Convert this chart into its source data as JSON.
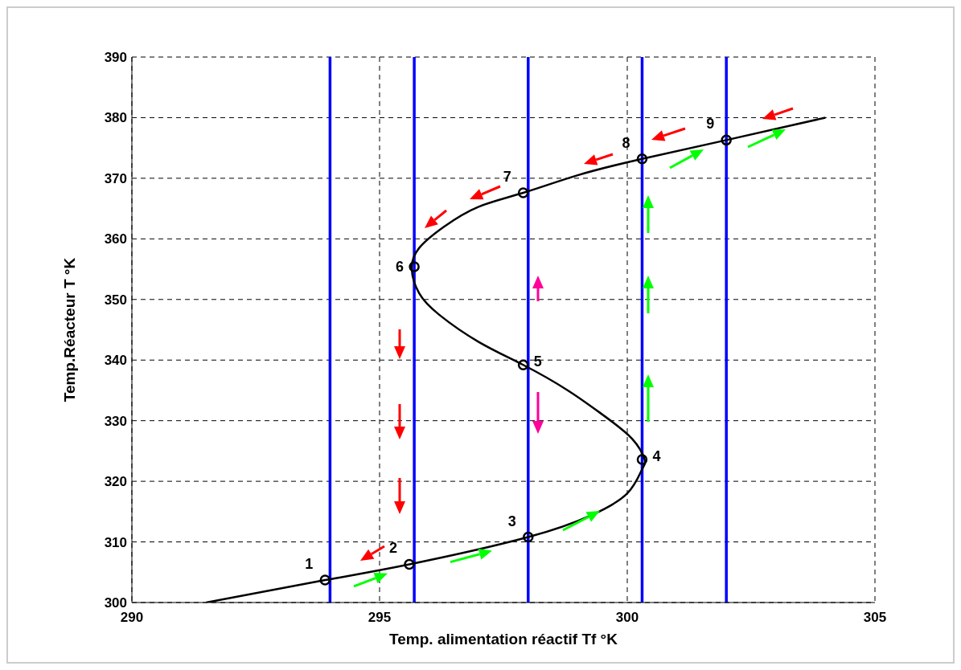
{
  "chart_data": {
    "type": "line",
    "xlabel": "Temp. alimentation réactif Tf °K",
    "ylabel": "Temp.Réacteur T °K",
    "xlim": [
      290,
      305
    ],
    "ylim": [
      300,
      390
    ],
    "xticks": [
      290,
      295,
      300,
      305
    ],
    "yticks": [
      300,
      310,
      320,
      330,
      340,
      350,
      360,
      370,
      380,
      390
    ],
    "grid": true,
    "series": [
      {
        "color": "#000000",
        "x": [
          291.5,
          293.9,
          295.6,
          298,
          299.3,
          300,
          300.3,
          300.35,
          300.1,
          299.5,
          298.8,
          297.9,
          297,
          296.2,
          295.8,
          295.65,
          295.8,
          296.3,
          297,
          297.9,
          299,
          300.3,
          302,
          304
        ],
        "values": [
          300,
          303.7,
          306.3,
          310.8,
          314.5,
          318,
          322,
          323.6,
          327,
          331,
          335,
          339.2,
          343,
          347.5,
          351,
          355,
          358.5,
          362,
          365.3,
          367.6,
          370.5,
          373.2,
          376.3,
          380
        ]
      },
      {
        "type": "scatter",
        "color": "#000000",
        "marker": "circle",
        "x": [
          293.9,
          295.6,
          298,
          300.3,
          297.9,
          295.7,
          297.9,
          300.3,
          302
        ],
        "values": [
          303.7,
          306.3,
          310.8,
          323.6,
          339.2,
          355.4,
          367.6,
          373.2,
          376.3
        ]
      }
    ],
    "annotations": [
      {
        "text": "1",
        "x": 293.9,
        "y": 303.7
      },
      {
        "text": "2",
        "x": 295.6,
        "y": 306.3
      },
      {
        "text": "3",
        "x": 298,
        "y": 310.8
      },
      {
        "text": "4",
        "x": 300.3,
        "y": 323.6
      },
      {
        "text": "5",
        "x": 297.9,
        "y": 339.2
      },
      {
        "text": "6",
        "x": 295.7,
        "y": 355.4
      },
      {
        "text": "7",
        "x": 297.9,
        "y": 367.6
      },
      {
        "text": "8",
        "x": 300.3,
        "y": 373.2
      },
      {
        "text": "9",
        "x": 302,
        "y": 376.3
      }
    ],
    "ref_lines": [
      {
        "axis": "x",
        "value": 294,
        "color": "#0000ff"
      },
      {
        "axis": "x",
        "value": 295.7,
        "color": "#0000ff"
      },
      {
        "axis": "x",
        "value": 298,
        "color": "#0000ff"
      },
      {
        "axis": "x",
        "value": 300.3,
        "color": "#0000ff"
      },
      {
        "axis": "x",
        "value": 302,
        "color": "#0000ff"
      }
    ]
  }
}
